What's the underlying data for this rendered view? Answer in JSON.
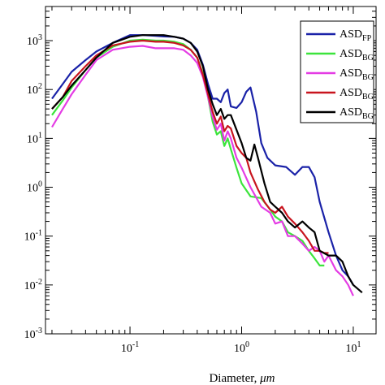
{
  "chart_data": {
    "type": "line",
    "title": "",
    "xlabel_main": "Diameter, ",
    "xlabel_unit": "μm",
    "ylabel": "",
    "x_scale": "log",
    "y_scale": "log",
    "xlim": [
      0.0175,
      16
    ],
    "ylim": [
      0.001,
      5000
    ],
    "grid": false,
    "legend_position": "top-right",
    "x_tick_labels": [
      {
        "x": 0.1,
        "base": "10",
        "exp": "-1"
      },
      {
        "x": 1,
        "base": "10",
        "exp": "0"
      },
      {
        "x": 10,
        "base": "10",
        "exp": "1"
      }
    ],
    "y_tick_labels": [
      {
        "y": 1000,
        "base": "10",
        "exp": "3"
      },
      {
        "y": 100,
        "base": "10",
        "exp": "2"
      },
      {
        "y": 10,
        "base": "10",
        "exp": "1"
      },
      {
        "y": 1,
        "base": "10",
        "exp": "0"
      },
      {
        "y": 0.1,
        "base": "10",
        "exp": "-1"
      },
      {
        "y": 0.01,
        "base": "10",
        "exp": "-2"
      },
      {
        "y": 0.001,
        "base": "10",
        "exp": "-3"
      }
    ],
    "series": [
      {
        "name": "ASD",
        "subscript": "FP",
        "color": "#1a22a8",
        "x": [
          0.02,
          0.025,
          0.03,
          0.04,
          0.05,
          0.07,
          0.1,
          0.13,
          0.17,
          0.2,
          0.25,
          0.3,
          0.35,
          0.4,
          0.45,
          0.5,
          0.55,
          0.6,
          0.65,
          0.7,
          0.75,
          0.8,
          0.9,
          1.0,
          1.1,
          1.2,
          1.35,
          1.5,
          1.7,
          2.0,
          2.5,
          3.0,
          3.5,
          4.0,
          4.5,
          5.0,
          6.0,
          7.0,
          8.0,
          9.0,
          10.0
        ],
        "y": [
          65,
          130,
          230,
          400,
          600,
          900,
          1300,
          1300,
          1250,
          1220,
          1200,
          1100,
          900,
          650,
          320,
          130,
          65,
          65,
          55,
          85,
          100,
          45,
          42,
          55,
          90,
          110,
          35,
          8,
          4,
          2.8,
          2.6,
          1.8,
          2.6,
          2.6,
          1.6,
          0.5,
          0.12,
          0.04,
          0.02,
          0.015,
          0.01
        ]
      },
      {
        "name": "ASD",
        "subscript": "BG",
        "color": "#3ce43c",
        "x": [
          0.02,
          0.025,
          0.03,
          0.04,
          0.05,
          0.07,
          0.1,
          0.13,
          0.17,
          0.2,
          0.25,
          0.3,
          0.35,
          0.4,
          0.45,
          0.5,
          0.55,
          0.6,
          0.65,
          0.7,
          0.75,
          0.8,
          0.9,
          1.0,
          1.2,
          1.5,
          1.8,
          2.0,
          2.3,
          2.6,
          3.0,
          3.5,
          4.0,
          4.5,
          5.0,
          5.5
        ],
        "y": [
          30,
          60,
          110,
          250,
          450,
          750,
          1000,
          1050,
          1000,
          1000,
          950,
          850,
          650,
          450,
          210,
          70,
          22,
          12,
          14,
          7,
          10,
          6,
          2.5,
          1.2,
          0.65,
          0.6,
          0.35,
          0.25,
          0.2,
          0.12,
          0.1,
          0.08,
          0.05,
          0.035,
          0.025,
          0.025
        ]
      },
      {
        "name": "ASD",
        "subscript": "BG",
        "color": "#e43ce4",
        "x": [
          0.02,
          0.025,
          0.03,
          0.04,
          0.05,
          0.07,
          0.1,
          0.13,
          0.17,
          0.2,
          0.25,
          0.3,
          0.35,
          0.4,
          0.45,
          0.5,
          0.55,
          0.6,
          0.65,
          0.7,
          0.75,
          0.8,
          0.9,
          1.0,
          1.2,
          1.5,
          1.8,
          2.0,
          2.3,
          2.6,
          3.0,
          3.5,
          4.0,
          4.5,
          5.0,
          5.5,
          6.0,
          7.0,
          8.0,
          9.0,
          10.0
        ],
        "y": [
          17,
          40,
          80,
          200,
          400,
          650,
          750,
          780,
          700,
          700,
          700,
          650,
          500,
          350,
          180,
          70,
          28,
          15,
          20,
          9,
          14,
          10,
          4,
          2.5,
          1.0,
          0.4,
          0.3,
          0.18,
          0.2,
          0.1,
          0.1,
          0.07,
          0.05,
          0.06,
          0.05,
          0.03,
          0.04,
          0.02,
          0.015,
          0.01,
          0.006
        ]
      },
      {
        "name": "ASD",
        "subscript": "BG",
        "color": "#c8141e",
        "x": [
          0.02,
          0.025,
          0.03,
          0.04,
          0.05,
          0.07,
          0.1,
          0.13,
          0.17,
          0.2,
          0.25,
          0.3,
          0.35,
          0.4,
          0.45,
          0.5,
          0.55,
          0.6,
          0.65,
          0.7,
          0.75,
          0.8,
          0.9,
          1.0,
          1.1,
          1.2,
          1.4,
          1.6,
          1.8,
          2.0,
          2.3,
          2.6,
          3.0,
          3.5,
          4.0,
          4.5,
          5.0,
          5.5,
          6.0
        ],
        "y": [
          40,
          70,
          150,
          300,
          500,
          800,
          950,
          1000,
          950,
          950,
          900,
          800,
          650,
          450,
          200,
          80,
          35,
          20,
          28,
          14,
          18,
          16,
          7,
          5,
          4,
          2.0,
          0.9,
          0.5,
          0.35,
          0.3,
          0.4,
          0.25,
          0.18,
          0.12,
          0.08,
          0.05,
          0.05,
          0.045,
          0.045
        ]
      },
      {
        "name": "ASD",
        "subscript": "BG",
        "color": "#000000",
        "x": [
          0.02,
          0.025,
          0.03,
          0.04,
          0.05,
          0.07,
          0.1,
          0.13,
          0.17,
          0.2,
          0.25,
          0.3,
          0.35,
          0.4,
          0.45,
          0.5,
          0.55,
          0.6,
          0.65,
          0.7,
          0.75,
          0.8,
          0.9,
          1.0,
          1.1,
          1.2,
          1.3,
          1.4,
          1.6,
          1.8,
          2.0,
          2.3,
          2.6,
          3.0,
          3.5,
          4.0,
          4.5,
          5.0,
          6.0,
          7.0,
          8.0,
          9.0,
          10.0,
          12.0
        ],
        "y": [
          40,
          70,
          120,
          250,
          450,
          900,
          1200,
          1300,
          1300,
          1300,
          1200,
          1100,
          900,
          600,
          300,
          100,
          50,
          30,
          40,
          25,
          30,
          30,
          15,
          8,
          4,
          3.5,
          7.5,
          4,
          1.2,
          0.5,
          0.4,
          0.3,
          0.2,
          0.15,
          0.2,
          0.15,
          0.12,
          0.05,
          0.04,
          0.04,
          0.03,
          0.015,
          0.01,
          0.007
        ]
      }
    ]
  }
}
